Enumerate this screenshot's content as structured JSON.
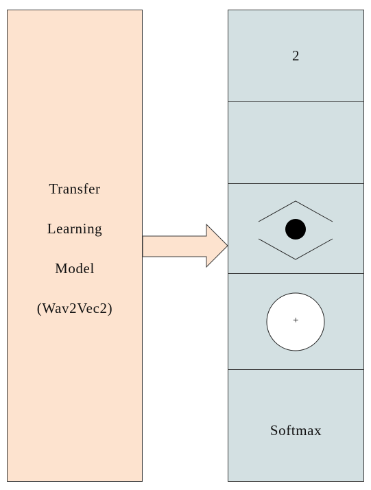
{
  "left_model": {
    "lines": [
      "Transfer",
      "Learning",
      "Model",
      "(Wav2Vec2)"
    ]
  },
  "right_stack": {
    "top_label": "2",
    "plus_symbol": "+",
    "bottom_label": "Softmax"
  },
  "colors": {
    "left_fill": "#fde3cf",
    "right_fill": "#d3e0e2",
    "arrow_fill": "#fde3cf",
    "outline": "#3a3a3a"
  }
}
